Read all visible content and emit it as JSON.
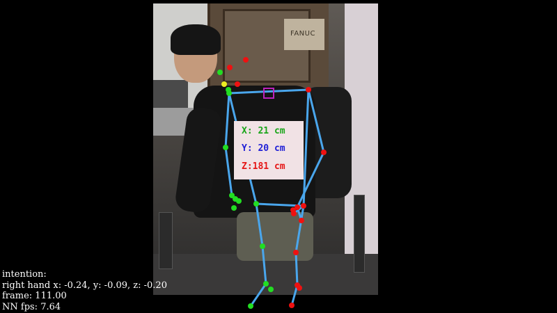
{
  "scene": {
    "cabinet_label": "FANUC"
  },
  "coordinates": {
    "x": "X: 21 cm",
    "y": "Y: 20 cm",
    "z": "Z:181 cm"
  },
  "info": {
    "intention_label": "intention:",
    "right_hand": "right hand x: -0.24, y: -0.09, z: -0.20",
    "frame": "frame: 111.00",
    "fps": "NN fps: 7.64"
  },
  "colors": {
    "bone": "#4aa6ec",
    "left_joint": "#22dd22",
    "right_joint": "#ee1111",
    "nose_joint": "#eeee22",
    "neck_marker": "#bb22bb",
    "coord_box_bg": "#f1e2e5"
  }
}
